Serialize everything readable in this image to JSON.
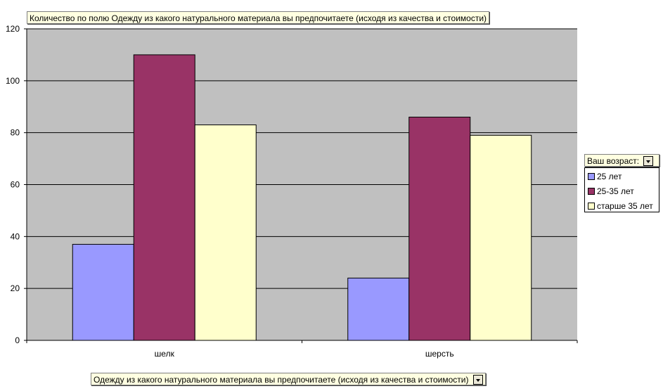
{
  "chart_data": {
    "type": "bar",
    "title": "Количество по полю Одежду из какого натурального материала вы предпочитаете (исходя из качества и стоимости)",
    "xlabel": "Одежду из какого натурального материала вы предпочитаете (исходя из качества и стоимости)",
    "categories": [
      "шелк",
      "шерсть"
    ],
    "series": [
      {
        "name": "25 лет",
        "values": [
          37,
          24
        ],
        "color": "#9999ff"
      },
      {
        "name": "25-35 лет",
        "values": [
          110,
          86
        ],
        "color": "#993366"
      },
      {
        "name": "старше 35 лет",
        "values": [
          83,
          79
        ],
        "color": "#ffffcc"
      }
    ],
    "ylim": [
      0,
      120
    ],
    "yticks": [
      0,
      20,
      40,
      60,
      80,
      100,
      120
    ],
    "grid": true,
    "plot_background": "#c0c0c0",
    "legend": {
      "title": "Ваш возраст:",
      "position": "right"
    }
  }
}
